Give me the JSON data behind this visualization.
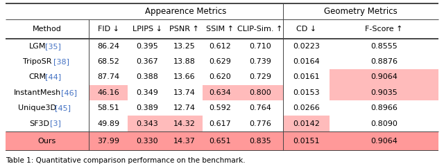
{
  "header_group1": "Appearence Metrics",
  "header_group2": "Geometry Metrics",
  "col_headers": [
    "Method",
    "FID ↓",
    "LPIPS ↓",
    "PSNR ↑",
    "SSIM ↑",
    "CLIP-Sim. ↑",
    "CD ↓",
    "F-Score ↑"
  ],
  "rows": [
    [
      "LGM",
      "35",
      "86.24",
      "0.395",
      "13.25",
      "0.612",
      "0.710",
      "0.0223",
      "0.8555"
    ],
    [
      "TripoSR",
      "38",
      "68.52",
      "0.367",
      "13.88",
      "0.629",
      "0.739",
      "0.0164",
      "0.8876"
    ],
    [
      "CRM",
      "44",
      "87.74",
      "0.388",
      "13.66",
      "0.620",
      "0.729",
      "0.0161",
      "0.9064"
    ],
    [
      "InstantMesh",
      "46",
      "46.16",
      "0.349",
      "13.74",
      "0.634",
      "0.800",
      "0.0153",
      "0.9035"
    ],
    [
      "Unique3D",
      "45",
      "58.51",
      "0.389",
      "12.74",
      "0.592",
      "0.764",
      "0.0266",
      "0.8966"
    ],
    [
      "SF3D",
      "3",
      "49.89",
      "0.343",
      "14.32",
      "0.617",
      "0.776",
      "0.0142",
      "0.8090"
    ]
  ],
  "ours": [
    "Ours",
    "",
    "37.99",
    "0.330",
    "14.37",
    "0.651",
    "0.835",
    "0.0151",
    "0.9064"
  ],
  "ref_color": "#4472C4",
  "highlight_light": "#FFBBBB",
  "highlight_ours": "#FF9999",
  "line_color": "#444444",
  "figsize": [
    6.4,
    2.37
  ],
  "dpi": 100,
  "caption": "Table 1: Quantitative comparison performance on the benchmark."
}
